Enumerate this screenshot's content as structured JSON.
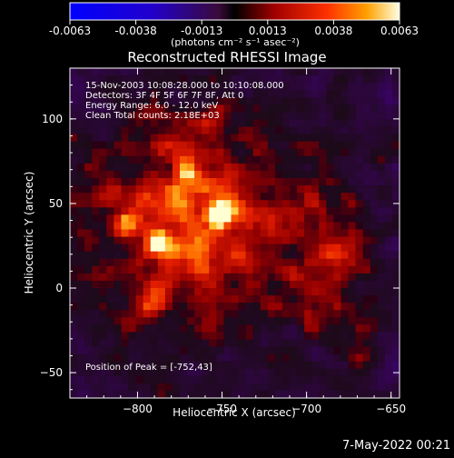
{
  "colorbar": {
    "tick_labels": [
      "-0.0063",
      "-0.0038",
      "-0.0013",
      "0.0013",
      "0.0038",
      "0.0063"
    ],
    "units_label": "(photons cm⁻² s⁻¹ asec⁻²)"
  },
  "chart_data": {
    "type": "heatmap",
    "title": "Reconstructed RHESSI Image",
    "xlabel": "Heliocentric X (arcsec)",
    "ylabel": "Heliocentric Y (arcsec)",
    "xlim": [
      -840,
      -645
    ],
    "ylim": [
      -65,
      130
    ],
    "x_ticks": [
      -800,
      -750,
      -700,
      -650
    ],
    "y_ticks": [
      -50,
      0,
      50,
      100
    ],
    "x_tick_labels": [
      "−800",
      "−750",
      "−700",
      "−650"
    ],
    "y_tick_labels": [
      "−50",
      "0",
      "50",
      "100"
    ],
    "color_range": [
      -0.0063,
      0.0063
    ],
    "peak_position": [
      -752,
      43
    ],
    "bright_sources": [
      {
        "x": -752,
        "y": 43,
        "relative_intensity": 1.0
      },
      {
        "x": -788,
        "y": 26,
        "relative_intensity": 0.75
      },
      {
        "x": -807,
        "y": 38,
        "relative_intensity": 0.6
      },
      {
        "x": -792,
        "y": -10,
        "relative_intensity": 0.55
      },
      {
        "x": -770,
        "y": 70,
        "relative_intensity": 0.55
      }
    ],
    "annotations": [
      "15-Nov-2003 10:08:28.000 to 10:10:08.000",
      "Detectors: 3F 4F 5F 6F 7F 8F, Att 0",
      "Energy Range: 6.0 - 12.0 keV",
      "Clean    Total counts: 2.18E+03"
    ],
    "peak_label": "Position of Peak = [-752,43]"
  },
  "footer": {
    "date": "7-May-2022 00:21"
  },
  "colors": {
    "background": "#000000",
    "text": "#ffffff"
  }
}
